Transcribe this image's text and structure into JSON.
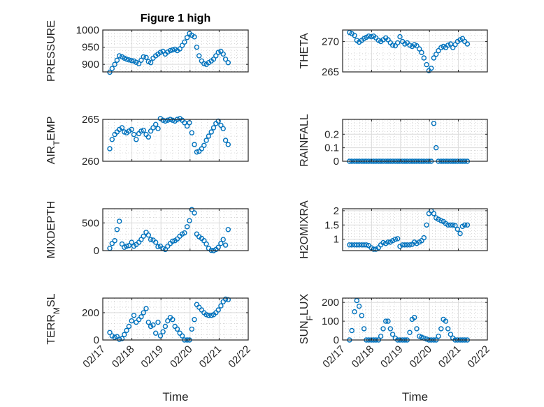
{
  "chart_data": [
    {
      "type": "scatter",
      "title": "Figure 1 high",
      "ylabel_parts": [
        "PRESSURE"
      ],
      "ylim": [
        878,
        1000
      ],
      "yticks": [
        900,
        950,
        1000
      ],
      "column": "left",
      "row": 0,
      "values": [
        877,
        888,
        900,
        912,
        925,
        922,
        918,
        915,
        913,
        911,
        910,
        906,
        902,
        912,
        922,
        920,
        908,
        905,
        918,
        925,
        930,
        935,
        938,
        930,
        936,
        940,
        942,
        944,
        940,
        945,
        955,
        965,
        978,
        990,
        985,
        980,
        950,
        925,
        910,
        902,
        900,
        905,
        910,
        915,
        925,
        935,
        938,
        930,
        915,
        905
      ]
    },
    {
      "type": "scatter",
      "title": "",
      "ylabel_parts": [
        "THETA"
      ],
      "ylim": [
        265,
        271.9
      ],
      "yticks": [
        265,
        270
      ],
      "column": "right",
      "row": 0,
      "values": [
        271.5,
        271.3,
        271.0,
        270.2,
        269.9,
        270.2,
        270.5,
        270.7,
        270.9,
        270.8,
        270.9,
        270.6,
        270.2,
        270.0,
        270.3,
        270.6,
        270.3,
        269.8,
        269.4,
        269.3,
        269.8,
        270.8,
        270.0,
        269.6,
        269.8,
        269.4,
        269.2,
        269.5,
        269.3,
        268.8,
        268.2,
        267.3,
        266.2,
        265.2,
        265.6,
        267.3,
        267.9,
        268.5,
        269.0,
        269.2,
        269.0,
        269.4,
        269.6,
        269.0,
        269.5,
        270.0,
        270.3,
        270.5,
        270.0,
        269.6
      ]
    },
    {
      "type": "scatter",
      "title": "",
      "ylabel_parts": [
        "AIR",
        "T",
        "EMP"
      ],
      "ylim": [
        260,
        265
      ],
      "yticks": [
        260,
        265
      ],
      "column": "left",
      "row": 1,
      "values": [
        261.5,
        262.6,
        263.2,
        263.5,
        263.8,
        264.0,
        263.5,
        263.4,
        263.6,
        263.8,
        263.2,
        262.6,
        263.3,
        263.6,
        263.7,
        263.2,
        262.9,
        263.6,
        264.0,
        264.4,
        263.9,
        265.1,
        264.9,
        264.8,
        264.9,
        265.0,
        264.9,
        264.8,
        265.0,
        265.1,
        264.9,
        264.6,
        264.2,
        264.6,
        263.4,
        262.0,
        261.1,
        261.2,
        261.5,
        261.9,
        262.5,
        263.0,
        263.5,
        264.0,
        264.5,
        264.8,
        264.3,
        263.9,
        262.5,
        262.0
      ]
    },
    {
      "type": "scatter",
      "title": "",
      "ylabel_parts": [
        "RAINFALL"
      ],
      "ylim": [
        0,
        0.31
      ],
      "yticks": [
        0,
        0.1,
        0.2
      ],
      "column": "right",
      "row": 1,
      "values": [
        0,
        0,
        0,
        0,
        0,
        0,
        0,
        0,
        0,
        0,
        0,
        0,
        0,
        0,
        0,
        0,
        0,
        0,
        0,
        0,
        0,
        0,
        0,
        0,
        0,
        0,
        0,
        0,
        0,
        0,
        0,
        0,
        0,
        0,
        0,
        0.28,
        0.1,
        0,
        0,
        0,
        0,
        0,
        0,
        0,
        0,
        0,
        0,
        0,
        0,
        0
      ]
    },
    {
      "type": "scatter",
      "title": "",
      "ylabel_parts": [
        "MIXDEPTH"
      ],
      "ylim": [
        0,
        755
      ],
      "yticks": [
        0,
        500
      ],
      "column": "left",
      "row": 2,
      "values": [
        40,
        130,
        180,
        380,
        530,
        120,
        60,
        80,
        90,
        150,
        80,
        110,
        150,
        200,
        260,
        330,
        280,
        200,
        190,
        150,
        70,
        80,
        40,
        20,
        80,
        130,
        170,
        180,
        210,
        260,
        300,
        320,
        430,
        540,
        740,
        680,
        300,
        250,
        220,
        180,
        120,
        40,
        5,
        0,
        20,
        60,
        130,
        200,
        100,
        380
      ]
    },
    {
      "type": "scatter",
      "title": "",
      "ylabel_parts": [
        "H2OMIXRA"
      ],
      "ylim": [
        0.6,
        2.07
      ],
      "yticks": [
        1,
        1.5,
        2
      ],
      "column": "right",
      "row": 2,
      "values": [
        0.8,
        0.8,
        0.8,
        0.8,
        0.8,
        0.8,
        0.8,
        0.8,
        0.78,
        0.7,
        0.65,
        0.65,
        0.7,
        0.8,
        0.88,
        0.85,
        0.9,
        0.9,
        0.95,
        1.0,
        1.02,
        0.75,
        0.8,
        0.8,
        0.8,
        0.8,
        0.82,
        0.9,
        0.85,
        0.9,
        0.95,
        1.05,
        1.5,
        1.9,
        2.0,
        1.9,
        1.75,
        1.7,
        1.65,
        1.62,
        1.55,
        1.5,
        1.5,
        1.5,
        1.48,
        1.35,
        1.2,
        1.45,
        1.5,
        1.5
      ]
    },
    {
      "type": "scatter",
      "title": "",
      "ylabel_parts": [
        "TERR",
        "M",
        "SL"
      ],
      "ylim": [
        0,
        307
      ],
      "yticks": [
        0,
        200
      ],
      "column": "left",
      "row": 3,
      "values": [
        55,
        30,
        20,
        25,
        5,
        10,
        40,
        70,
        100,
        140,
        180,
        130,
        150,
        170,
        200,
        230,
        130,
        100,
        110,
        50,
        130,
        30,
        60,
        100,
        140,
        165,
        150,
        100,
        80,
        50,
        30,
        0,
        0,
        0,
        80,
        150,
        260,
        240,
        220,
        200,
        185,
        180,
        180,
        185,
        200,
        220,
        250,
        280,
        300,
        295
      ]
    },
    {
      "type": "scatter",
      "title": "",
      "ylabel_parts": [
        "SUN",
        "F",
        "LUX"
      ],
      "ylim": [
        0,
        223
      ],
      "yticks": [
        0,
        100,
        200
      ],
      "column": "right",
      "row": 3,
      "values": [
        0,
        50,
        150,
        210,
        180,
        130,
        60,
        0,
        0,
        0,
        0,
        0,
        0,
        20,
        60,
        100,
        100,
        60,
        30,
        10,
        0,
        0,
        0,
        0,
        0,
        40,
        110,
        120,
        60,
        20,
        15,
        10,
        5,
        0,
        0,
        0,
        0,
        20,
        60,
        110,
        100,
        60,
        30,
        10,
        0,
        0,
        0,
        0,
        0,
        0
      ]
    }
  ],
  "x_days_since_0217": [
    0.24,
    0.32,
    0.41,
    0.49,
    0.57,
    0.66,
    0.74,
    0.82,
    0.9,
    0.99,
    1.07,
    1.15,
    1.24,
    1.32,
    1.4,
    1.49,
    1.57,
    1.65,
    1.73,
    1.82,
    1.9,
    1.98,
    2.07,
    2.15,
    2.23,
    2.32,
    2.4,
    2.48,
    2.56,
    2.65,
    2.73,
    2.81,
    2.9,
    2.98,
    3.06,
    3.15,
    3.23,
    3.31,
    3.4,
    3.48,
    3.56,
    3.64,
    3.73,
    3.81,
    3.89,
    3.97,
    4.06,
    4.14,
    4.22,
    4.31
  ],
  "xlim": [
    0,
    5
  ],
  "xtick_labels": [
    "02/17",
    "02/18",
    "02/19",
    "02/20",
    "02/21",
    "02/22"
  ],
  "xlabel": "Time",
  "grid": "major+minor",
  "colors": {
    "marker": "#0072BD",
    "axes": "#262626",
    "grid": "#dcdcdc"
  }
}
